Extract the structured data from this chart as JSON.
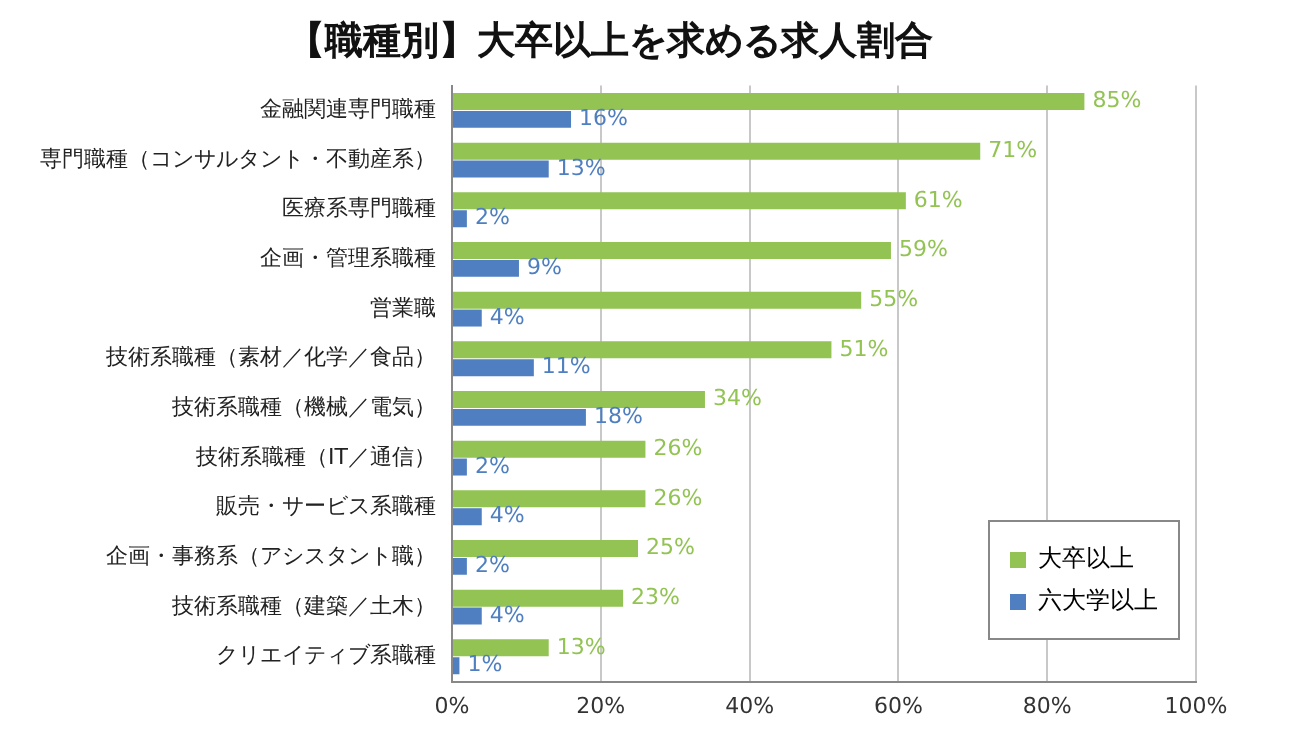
{
  "chart_data": {
    "type": "bar",
    "orientation": "horizontal",
    "title": "【職種別】大卒以上を求める求人割合",
    "categories": [
      "金融関連専門職種",
      "専門職種（コンサルタント・不動産系）",
      "医療系専門職種",
      "企画・管理系職種",
      "営業職",
      "技術系職種（素材／化学／食品）",
      "技術系職種（機械／電気）",
      "技術系職種（IT／通信）",
      "販売・サービス系職種",
      "企画・事務系（アシスタント職）",
      "技術系職種（建築／土木）",
      "クリエイティブ系職種"
    ],
    "series": [
      {
        "name": "大卒以上",
        "color": "#92c353",
        "values": [
          85,
          71,
          61,
          59,
          55,
          51,
          34,
          26,
          26,
          25,
          23,
          13
        ],
        "value_labels": [
          "85%",
          "71%",
          "61%",
          "59%",
          "55%",
          "51%",
          "34%",
          "26%",
          "26%",
          "25%",
          "23%",
          "13%"
        ]
      },
      {
        "name": "六大学以上",
        "color": "#4f7fc0",
        "values": [
          16,
          13,
          2,
          9,
          4,
          11,
          18,
          2,
          4,
          2,
          4,
          1
        ],
        "value_labels": [
          "16%",
          "13%",
          "2%",
          "9%",
          "4%",
          "11%",
          "18%",
          "2%",
          "4%",
          "2%",
          "4%",
          "1%"
        ]
      }
    ],
    "xlim": [
      0,
      100
    ],
    "xticks": [
      {
        "value": 0,
        "label": "0%"
      },
      {
        "value": 20,
        "label": "20%"
      },
      {
        "value": 40,
        "label": "40%"
      },
      {
        "value": 60,
        "label": "60%"
      },
      {
        "value": 80,
        "label": "80%"
      },
      {
        "value": 100,
        "label": "100%"
      }
    ],
    "grid": "x",
    "legend": "bottom right"
  }
}
